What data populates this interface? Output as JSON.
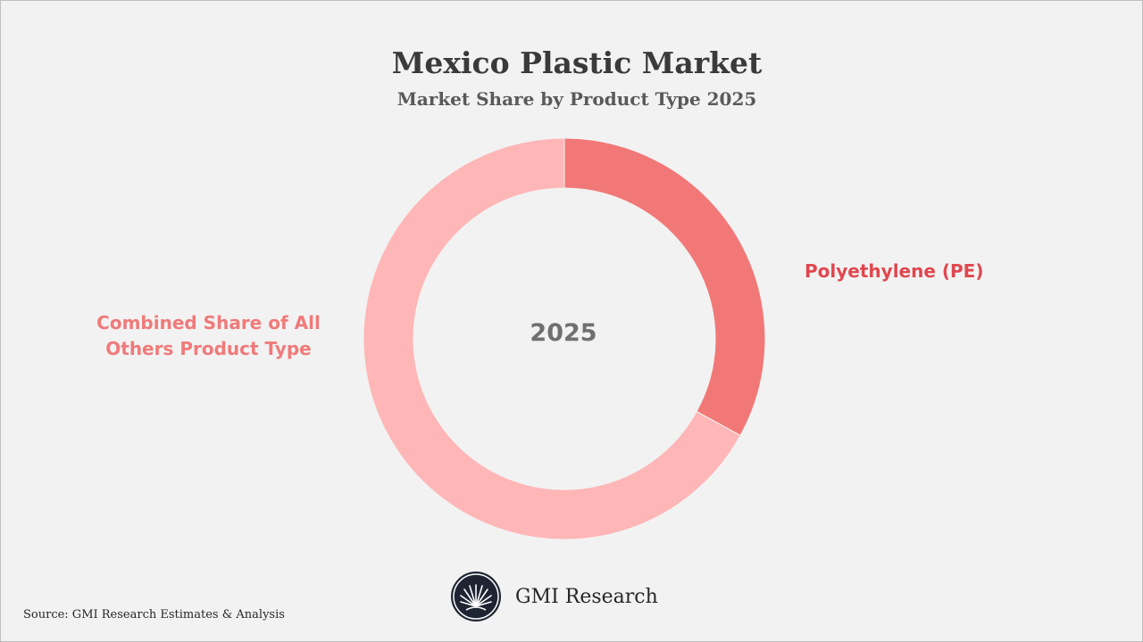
{
  "title": "Mexico Plastic Market",
  "subtitle": "Market Share by Product Type 2025",
  "chart_data": {
    "type": "pie",
    "donut": true,
    "center_label": "2025",
    "slices": [
      {
        "label": "Polyethylene (PE)",
        "value": 33,
        "color": "#f27878"
      },
      {
        "label": "Combined Share of All Others Product Type",
        "value": 67,
        "color": "#ffb6b7"
      }
    ],
    "legend": "none"
  },
  "labels": {
    "pe": "Polyethylene (PE)",
    "others": "Combined Share of All Others Product Type"
  },
  "brand": {
    "name": "GMI Research",
    "logo_icon": "gmi-logo-icon"
  },
  "source": "Source: GMI Research Estimates & Analysis",
  "colors": {
    "background": "#f2f2f2",
    "pe": "#f27878",
    "others": "#ffb6b7",
    "pe_label": "#e0474f",
    "others_label": "#f07a7a"
  }
}
